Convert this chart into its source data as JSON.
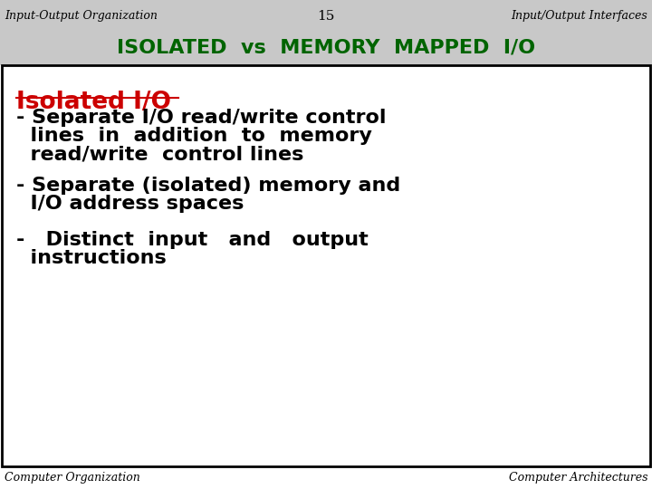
{
  "top_left": "Input-Output Organization",
  "top_center": "15",
  "top_right": "Input/Output Interfaces",
  "title": "ISOLATED  vs  MEMORY  MAPPED  I/O",
  "title_color": "#006400",
  "isolated_heading": "Isolated I/O",
  "isolated_heading_color": "#cc0000",
  "bullet1_line1": "- Separate I/O read/write control",
  "bullet1_line2": "  lines  in  addition  to  memory",
  "bullet1_line3": "  read/write  control lines",
  "bullet2_line1": "- Separate (isolated) memory and",
  "bullet2_line2": "  I/O address spaces",
  "bullet3_line1": "-   Distinct  input   and   output",
  "bullet3_line2": "  instructions",
  "bottom_left": "Computer Organization",
  "bottom_right": "Computer Architectures",
  "bg_color": "#ffffff",
  "text_color": "#000000",
  "border_color": "#000000",
  "header_bg": "#c8c8c8"
}
